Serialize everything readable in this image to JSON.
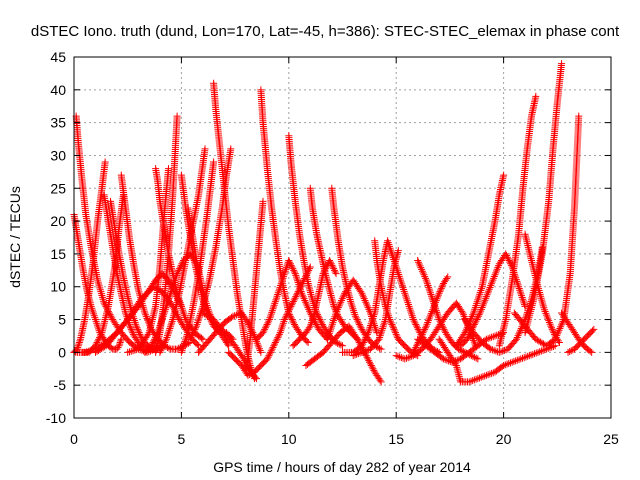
{
  "chart_data": {
    "type": "scatter",
    "title": "dSTEC Iono. truth (dund, Lon=170, Lat=-45, h=386): STEC-STEC_elemax in phase cont",
    "xlabel": "GPS time / hours of day 282 of year 2014",
    "ylabel": "dSTEC  / TECUs",
    "xlim": [
      0,
      25
    ],
    "ylim": [
      -10,
      45
    ],
    "xticks": [
      0,
      5,
      10,
      15,
      20,
      25
    ],
    "yticks": [
      -10,
      -5,
      0,
      5,
      10,
      15,
      20,
      25,
      30,
      35,
      40,
      45
    ],
    "grid": true,
    "marker": "plus",
    "series_color": "#ff0000",
    "series": [
      {
        "x": [
          0.0,
          0.1,
          0.2,
          0.4,
          0.6,
          0.8,
          1.0,
          1.2,
          1.4,
          1.6,
          1.8,
          2.0,
          2.1,
          2.2
        ],
        "values": [
          21.0,
          19,
          17,
          13,
          9.5,
          7,
          5,
          3,
          2,
          1,
          0.5,
          0.5,
          1,
          2
        ]
      },
      {
        "x": [
          0.0,
          0.15,
          0.3,
          0.5,
          0.7,
          0.9,
          1.1,
          1.3,
          1.45
        ],
        "values": [
          0,
          0.5,
          2,
          5,
          9,
          14,
          20,
          25,
          29
        ]
      },
      {
        "x": [
          0.1,
          0.2,
          0.35,
          0.55,
          0.8,
          1.1,
          1.4,
          1.8,
          2.2,
          2.6,
          3.0,
          3.4,
          3.8,
          4.2
        ],
        "values": [
          36,
          32,
          27,
          21,
          16,
          11,
          7.5,
          5,
          3,
          1.5,
          0.5,
          0,
          0.5,
          1
        ]
      },
      {
        "x": [
          0.4,
          0.7,
          1.0,
          1.3,
          1.6,
          1.9,
          2.1,
          2.3
        ],
        "values": [
          0,
          0,
          1,
          3,
          7,
          13,
          19,
          24
        ]
      },
      {
        "x": [
          1.4,
          1.6,
          1.8,
          2.0,
          2.2,
          2.4,
          2.6,
          2.8,
          3.0,
          3.3,
          3.6,
          3.9
        ],
        "values": [
          24,
          20,
          16,
          12,
          9,
          6,
          4,
          2.5,
          1.5,
          0.5,
          0.5,
          1
        ]
      },
      {
        "x": [
          1.7,
          1.9,
          2.1,
          2.3,
          2.5,
          2.7,
          2.9,
          3.1,
          3.3,
          3.6,
          3.9
        ],
        "values": [
          23,
          19,
          15,
          11.5,
          8.5,
          6,
          4,
          2.5,
          1.5,
          0.5,
          0.5
        ]
      },
      {
        "x": [
          2.2,
          2.4,
          2.6,
          2.8,
          3.0,
          3.3,
          3.6,
          3.9,
          4.2,
          4.5,
          4.8,
          5.1,
          5.4
        ],
        "values": [
          27,
          22,
          17,
          13,
          9.5,
          6,
          3.5,
          2,
          1,
          0.5,
          0.5,
          1,
          1.5
        ]
      },
      {
        "x": [
          0.0,
          0.5,
          1.0,
          1.5,
          2.0,
          2.5,
          2.8,
          3.1,
          3.4,
          3.7,
          4.0,
          4.3,
          4.6,
          4.9,
          5.2,
          5.5,
          5.8
        ],
        "values": [
          0,
          0,
          0.5,
          1.5,
          3,
          5,
          6.5,
          8,
          9,
          10,
          9.5,
          8.5,
          7,
          5,
          3.5,
          2,
          1
        ]
      },
      {
        "x": [
          1.0,
          1.5,
          2.0,
          2.5,
          3.0,
          3.5,
          3.8,
          4.1,
          4.4,
          4.7,
          5.0
        ],
        "values": [
          0,
          1,
          3,
          5,
          7,
          9.5,
          11,
          12,
          11,
          9,
          7
        ]
      },
      {
        "x": [
          2.5,
          3.0,
          3.5,
          3.8,
          4.0,
          4.2,
          4.4
        ],
        "values": [
          0,
          0.5,
          3,
          7,
          13,
          21,
          28
        ]
      },
      {
        "x": [
          3.3,
          3.6,
          3.9,
          4.2,
          4.5,
          4.8,
          5.1,
          5.4,
          5.8
        ],
        "values": [
          0,
          1,
          3,
          6,
          9,
          12,
          14,
          15,
          13
        ]
      },
      {
        "x": [
          3.8,
          3.9,
          4.0,
          4.2,
          4.4,
          4.6,
          4.8,
          5.0,
          5.2,
          5.4,
          5.6,
          5.8,
          6.0
        ],
        "values": [
          28,
          26,
          23,
          19,
          15,
          12,
          9,
          7,
          5,
          4,
          3,
          2.5,
          2
        ]
      },
      {
        "x": [
          3.8,
          4.0,
          4.2,
          4.4,
          4.6,
          4.8
        ],
        "values": [
          0,
          3,
          8,
          15,
          24,
          36
        ]
      },
      {
        "x": [
          4.0,
          4.3,
          4.6,
          4.9,
          5.2,
          5.5,
          5.8,
          6.1
        ],
        "values": [
          0,
          2,
          5,
          9,
          14,
          19,
          24,
          31
        ]
      },
      {
        "x": [
          5.0,
          5.2,
          5.4,
          5.6,
          5.8,
          6.0,
          6.2,
          6.5,
          6.8,
          7.1,
          7.4
        ],
        "values": [
          27,
          22,
          18,
          14,
          11,
          8,
          6,
          4,
          3,
          3,
          2
        ]
      },
      {
        "x": [
          5.3,
          5.5,
          5.7,
          5.9,
          6.1,
          6.3,
          6.5,
          6.8,
          7.0,
          7.2
        ],
        "values": [
          22,
          18,
          14,
          11,
          8,
          6,
          4.5,
          3,
          2,
          1
        ]
      },
      {
        "x": [
          5.0,
          5.3,
          5.6,
          5.9,
          6.2,
          6.5
        ],
        "values": [
          0,
          3,
          8,
          14,
          21,
          29
        ]
      },
      {
        "x": [
          5.4,
          5.7,
          6.0,
          6.3,
          6.6,
          6.9,
          7.1,
          7.3
        ],
        "values": [
          2,
          4,
          7,
          11,
          16,
          22,
          27,
          31
        ]
      },
      {
        "x": [
          6.5,
          6.6,
          6.8,
          7.0,
          7.2,
          7.4,
          7.6,
          7.8,
          8.0,
          8.2,
          8.4
        ],
        "values": [
          41,
          37,
          31,
          25,
          19,
          14,
          9,
          5,
          1,
          -2,
          -4
        ]
      },
      {
        "x": [
          5.8,
          6.2,
          6.6,
          7.0,
          7.4,
          7.8,
          8.1,
          8.4,
          8.7
        ],
        "values": [
          0,
          1.5,
          3,
          4.5,
          5.5,
          6,
          4.5,
          2.5,
          0
        ]
      },
      {
        "x": [
          6.0,
          6.5,
          7.0,
          7.5,
          7.9,
          8.2,
          8.5
        ],
        "values": [
          6,
          5,
          3,
          1,
          -1,
          -3,
          -4
        ]
      },
      {
        "x": [
          7.2,
          7.5,
          7.8,
          8.1,
          8.4,
          8.7,
          9.0,
          9.3,
          9.6,
          9.8,
          10.1,
          10.4,
          10.7,
          11.0
        ],
        "values": [
          0,
          -1,
          -2,
          -3.5,
          -3,
          -2,
          -1,
          1,
          3,
          5,
          7,
          9,
          11,
          13
        ]
      },
      {
        "x": [
          8.0,
          8.2,
          8.4,
          8.6,
          8.8
        ],
        "values": [
          -3,
          2,
          9,
          16,
          23
        ]
      },
      {
        "x": [
          8.7,
          8.8,
          9.0,
          9.2,
          9.4,
          9.6,
          9.8,
          10.0,
          10.3,
          10.6,
          10.9
        ],
        "values": [
          40,
          35,
          28,
          22,
          17,
          12.5,
          9,
          6,
          4,
          2.5,
          1.5
        ]
      },
      {
        "x": [
          8.5,
          8.8,
          9.1,
          9.4,
          9.7,
          10.0,
          10.3,
          10.6,
          11.0,
          11.4,
          11.8
        ],
        "values": [
          2,
          3,
          5,
          8,
          11,
          14,
          12,
          9,
          6,
          3.5,
          2
        ]
      },
      {
        "x": [
          10.0,
          10.1,
          10.3,
          10.5,
          10.7,
          10.9,
          11.1,
          11.3,
          11.6,
          11.9,
          12.2,
          12.5
        ],
        "values": [
          33,
          29,
          23,
          18,
          14,
          10.5,
          8,
          6,
          4,
          2.5,
          1.5,
          1
        ]
      },
      {
        "x": [
          10.2,
          10.5,
          10.8,
          11.0,
          11.2,
          11.4,
          11.6,
          11.9,
          12.2
        ],
        "values": [
          1,
          2,
          3,
          4,
          6,
          9,
          12,
          14,
          12
        ]
      },
      {
        "x": [
          11.0,
          11.1,
          11.3,
          11.5,
          11.7,
          11.9,
          12.1,
          12.3,
          12.6,
          12.9,
          13.2
        ],
        "values": [
          25,
          22,
          18,
          15,
          12,
          9.5,
          7,
          5.5,
          4,
          3,
          2
        ]
      },
      {
        "x": [
          12.0,
          12.1,
          12.3,
          12.5,
          12.7,
          12.9,
          13.1,
          13.4,
          13.7,
          14.0,
          14.3
        ],
        "values": [
          25,
          22,
          17,
          13,
          10,
          7.5,
          5.5,
          3.5,
          2,
          1,
          0.5
        ]
      },
      {
        "x": [
          10.8,
          11.2,
          11.6,
          12.0,
          12.4,
          12.8,
          13.2,
          13.6,
          14.0,
          14.3
        ],
        "values": [
          -2,
          -1,
          0,
          1.5,
          3,
          4,
          2,
          -0.5,
          -3,
          -4.5
        ]
      },
      {
        "x": [
          11.8,
          12.2,
          12.6,
          13.0,
          13.4,
          13.8,
          14.1
        ],
        "values": [
          2,
          6,
          9,
          11,
          9,
          6,
          3
        ]
      },
      {
        "x": [
          12.5,
          13.0,
          13.4,
          13.7,
          14.0,
          14.2,
          14.4,
          14.6,
          14.8
        ],
        "values": [
          0,
          0,
          1,
          3,
          6,
          10,
          14,
          17,
          15
        ]
      },
      {
        "x": [
          13.0,
          13.4,
          13.8,
          14.2,
          14.5,
          14.7,
          14.9,
          15.1
        ],
        "values": [
          -0.5,
          0,
          0.5,
          2,
          5,
          9,
          13,
          15.5
        ]
      },
      {
        "x": [
          14.0,
          14.1,
          14.3,
          14.5,
          14.7,
          14.9,
          15.1,
          15.4,
          15.7,
          16.0
        ],
        "values": [
          17,
          14,
          10,
          7,
          5,
          3.5,
          2,
          1,
          0,
          -0.5
        ]
      },
      {
        "x": [
          14.8,
          15.0,
          15.2,
          15.4,
          15.6,
          15.8,
          16.1,
          16.4,
          16.7,
          17.0
        ],
        "values": [
          15,
          13,
          11,
          9,
          7,
          5,
          3,
          1.5,
          0.5,
          0
        ]
      },
      {
        "x": [
          15.0,
          15.4,
          15.8,
          16.2,
          16.6,
          17.0,
          17.4,
          17.8,
          18.1,
          18.4,
          18.7
        ],
        "values": [
          -0.5,
          -1,
          -0.5,
          0.5,
          2,
          4,
          6,
          7.5,
          6,
          3.5,
          1
        ]
      },
      {
        "x": [
          15.8,
          16.1,
          16.4,
          16.7,
          17.0,
          17.2,
          17.4
        ],
        "values": [
          0,
          2,
          4,
          6.5,
          9,
          10.5,
          11.5
        ]
      },
      {
        "x": [
          16.0,
          16.4,
          16.7,
          17.0,
          17.3,
          17.6,
          17.9,
          18.2,
          18.5,
          18.8
        ],
        "values": [
          14,
          11,
          8,
          5,
          3,
          1.5,
          0.5,
          0,
          -0.5,
          -1
        ]
      },
      {
        "x": [
          16.0,
          16.4,
          16.8,
          17.2,
          17.6,
          18.0,
          18.4,
          18.8,
          19.2,
          19.6,
          20.0
        ],
        "values": [
          2,
          1,
          0,
          -1,
          -1.5,
          -1,
          0,
          1,
          2,
          2.5,
          3
        ]
      },
      {
        "x": [
          17.0,
          17.4,
          17.8,
          18.0,
          18.4,
          18.8,
          19.2,
          19.6,
          20.0,
          20.4,
          20.8,
          21.2,
          21.6,
          22.0,
          22.4
        ],
        "values": [
          2,
          0,
          -2,
          -4.5,
          -4.5,
          -4,
          -3.5,
          -3,
          -2,
          -1.5,
          -1,
          -0.5,
          0,
          0.5,
          1
        ]
      },
      {
        "x": [
          17.8,
          18.2,
          18.6,
          19.0,
          19.3,
          19.6,
          19.8,
          20.0
        ],
        "values": [
          1,
          3,
          6,
          10,
          15,
          20,
          24,
          27
        ]
      },
      {
        "x": [
          18.0,
          18.3,
          18.6,
          18.9,
          19.2,
          19.5,
          19.8,
          20.1,
          20.4,
          20.7,
          21.0
        ],
        "values": [
          1,
          2,
          4,
          6,
          8.5,
          11,
          13.5,
          15,
          13,
          10,
          7
        ]
      },
      {
        "x": [
          18.2,
          18.6,
          19.0,
          19.4,
          19.8,
          20.2,
          20.6,
          21.0,
          21.3,
          21.6,
          21.8
        ],
        "values": [
          5,
          3,
          1.5,
          0.5,
          0,
          0.5,
          2,
          5,
          8,
          12,
          16
        ]
      },
      {
        "x": [
          19.8,
          20.1,
          20.4,
          20.7,
          20.9,
          21.1,
          21.3,
          21.5
        ],
        "values": [
          1,
          5,
          11,
          18,
          25,
          31,
          36,
          39
        ]
      },
      {
        "x": [
          21.0,
          21.3,
          21.6,
          21.9,
          22.2,
          22.4,
          22.6
        ],
        "values": [
          18,
          14,
          10,
          6.5,
          4,
          2.5,
          1.5
        ]
      },
      {
        "x": [
          21.0,
          21.4,
          21.8,
          22.1,
          22.3,
          22.5,
          22.7
        ],
        "values": [
          3,
          8,
          15,
          23,
          31,
          38,
          44
        ]
      },
      {
        "x": [
          20.5,
          21.0,
          21.5,
          22.0,
          22.4,
          22.8,
          23.1,
          23.3,
          23.5
        ],
        "values": [
          6,
          4,
          2,
          1,
          2,
          5,
          12,
          22,
          36
        ]
      },
      {
        "x": [
          22.7,
          23.0,
          23.3,
          23.6,
          23.9,
          24.1
        ],
        "values": [
          6,
          4.5,
          3,
          1.5,
          0.5,
          0
        ]
      },
      {
        "x": [
          23.0,
          23.3,
          23.6,
          23.9,
          24.2
        ],
        "values": [
          0,
          0.5,
          1.5,
          2.5,
          3.5
        ]
      }
    ]
  }
}
